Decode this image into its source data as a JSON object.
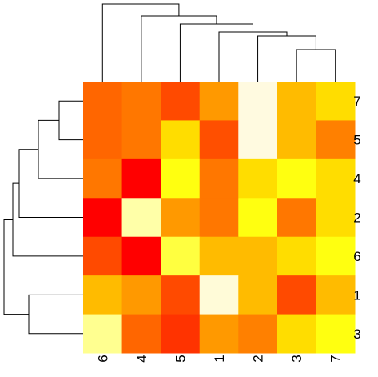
{
  "chart_data": {
    "type": "heatmap",
    "title": "",
    "xlabel": "",
    "ylabel": "",
    "columns": [
      "6",
      "4",
      "5",
      "1",
      "2",
      "3",
      "7"
    ],
    "rows": [
      "7",
      "5",
      "4",
      "2",
      "6",
      "1",
      "3"
    ],
    "cells": [
      [
        "#ff6600",
        "#ff7700",
        "#ff4a00",
        "#ff9900",
        "#fffae0",
        "#ffbb00",
        "#ffdd00"
      ],
      [
        "#ff6600",
        "#ff7700",
        "#ffdd00",
        "#ff4f00",
        "#fffae0",
        "#ffbb00",
        "#ff8000"
      ],
      [
        "#ff7700",
        "#ff0000",
        "#ffff10",
        "#ff7700",
        "#ffdd00",
        "#ffff10",
        "#ffdd00"
      ],
      [
        "#ff0000",
        "#ffffa8",
        "#ff9900",
        "#ff7700",
        "#ffff10",
        "#ff7700",
        "#ffdd00"
      ],
      [
        "#ff4a00",
        "#ff0000",
        "#ffff40",
        "#ffbb00",
        "#ffbb00",
        "#ffdd00",
        "#ffff10"
      ],
      [
        "#ffbb00",
        "#ff9900",
        "#ff4a00",
        "#fffbd8",
        "#ffbb00",
        "#ff4a00",
        "#ffbb00"
      ],
      [
        "#ffff90",
        "#ff6600",
        "#ff3300",
        "#ff9900",
        "#ff8000",
        "#ffdd00",
        "#ffff10"
      ]
    ],
    "legend": "none"
  }
}
